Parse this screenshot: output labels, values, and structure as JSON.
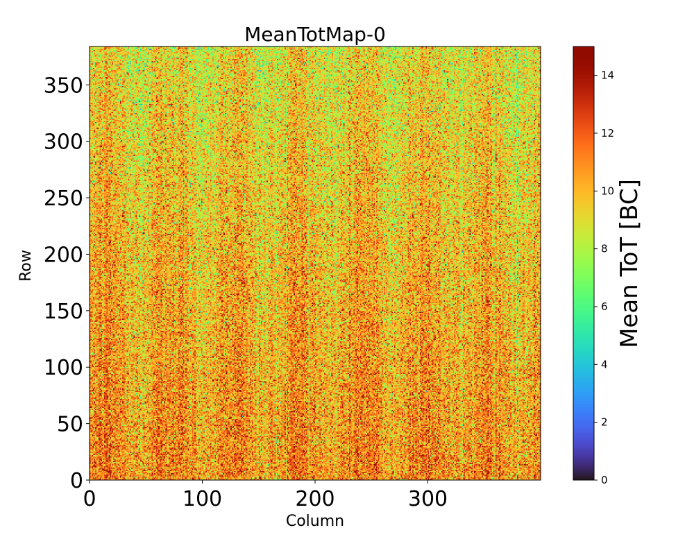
{
  "chart_data": {
    "type": "heatmap",
    "title": "MeanTotMap-0",
    "xlabel": "Column",
    "ylabel": "Row",
    "colorbar_label": "Mean ToT [BC]",
    "xlim": [
      0,
      400
    ],
    "ylim": [
      0,
      384
    ],
    "grid": {
      "columns": 400,
      "rows": 384
    },
    "xticks": [
      0,
      100,
      200,
      300
    ],
    "yticks": [
      0,
      50,
      100,
      150,
      200,
      250,
      300,
      350
    ],
    "color_range": [
      0,
      15
    ],
    "colorbar_ticks": [
      0,
      2,
      4,
      6,
      8,
      10,
      12,
      14
    ],
    "colormap": "turbo",
    "value_summary": {
      "typical_range": [
        7,
        15
      ],
      "description_top_rows_mean": 9,
      "description_bottom_rows_mean": 11
    }
  }
}
